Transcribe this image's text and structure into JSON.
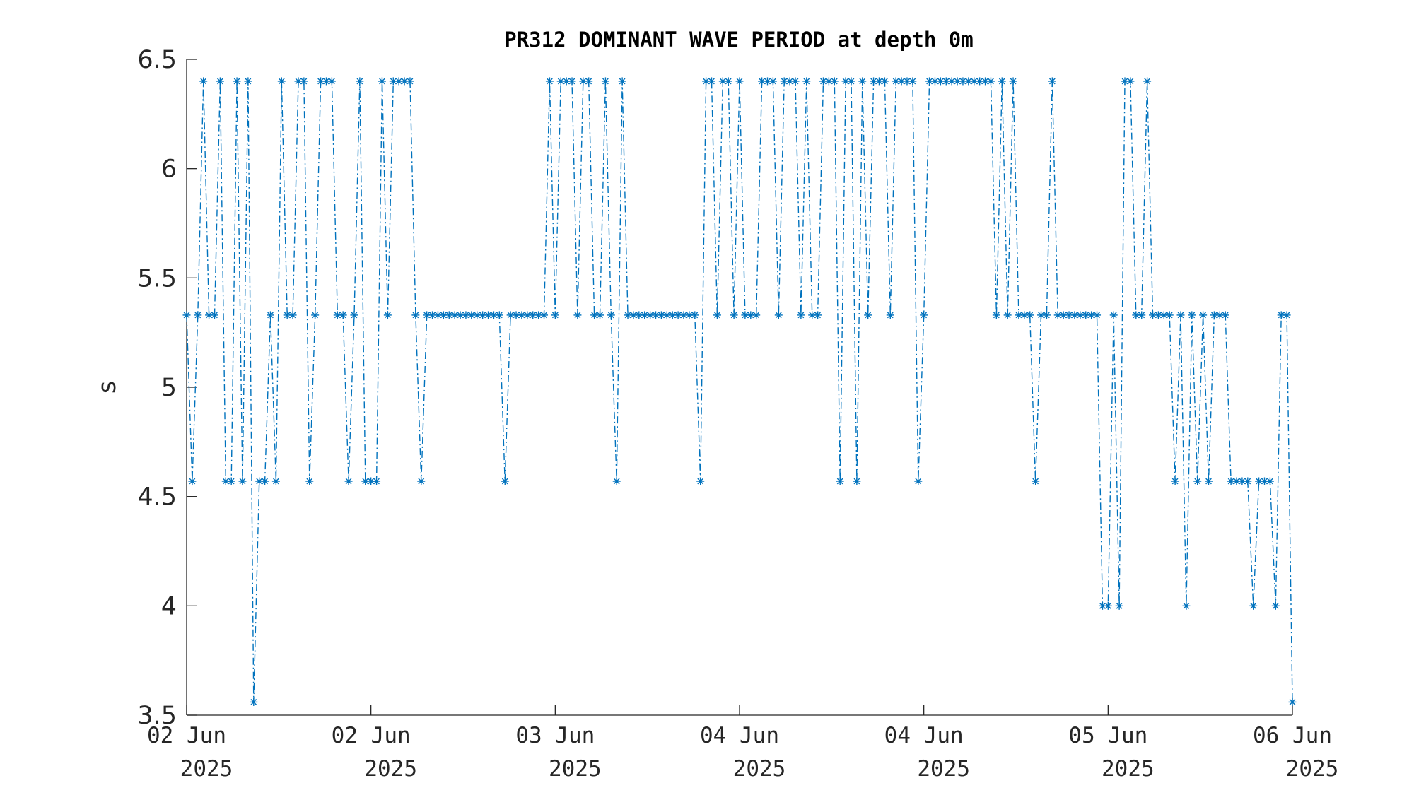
{
  "chart_data": {
    "type": "line",
    "title": "PR312 DOMINANT WAVE PERIOD at depth 0m",
    "xlabel": "",
    "ylabel": "s",
    "ylim": [
      3.5,
      6.5
    ],
    "yticks": [
      "3.5",
      "4",
      "4.5",
      "5",
      "5.5",
      "6",
      "6.5"
    ],
    "xticks": [
      {
        "day": "02 Jun",
        "year": "2025"
      },
      {
        "day": "02 Jun",
        "year": "2025"
      },
      {
        "day": "03 Jun",
        "year": "2025"
      },
      {
        "day": "04 Jun",
        "year": "2025"
      },
      {
        "day": "04 Jun",
        "year": "2025"
      },
      {
        "day": "05 Jun",
        "year": "2025"
      },
      {
        "day": "06 Jun",
        "year": "2025"
      }
    ],
    "grid": false,
    "color": "#0072BD",
    "line_style": "dash-dot",
    "marker": "asterisk",
    "series": [
      {
        "values": [
          5.33,
          4.57,
          5.33,
          6.4,
          5.33,
          5.33,
          6.4,
          4.57,
          4.57,
          6.4,
          4.57,
          6.4,
          3.56,
          4.57,
          4.57,
          5.33,
          4.57,
          6.4,
          5.33,
          5.33,
          6.4,
          6.4,
          4.57,
          5.33,
          6.4,
          6.4,
          6.4,
          5.33,
          5.33,
          4.57,
          5.33,
          6.4,
          4.57,
          4.57,
          4.57,
          6.4,
          5.33,
          6.4,
          6.4,
          6.4,
          6.4,
          5.33,
          4.57,
          5.33,
          5.33,
          5.33,
          5.33,
          5.33,
          5.33,
          5.33,
          5.33,
          5.33,
          5.33,
          5.33,
          5.33,
          5.33,
          5.33,
          4.57,
          5.33,
          5.33,
          5.33,
          5.33,
          5.33,
          5.33,
          5.33,
          6.4,
          5.33,
          6.4,
          6.4,
          6.4,
          5.33,
          6.4,
          6.4,
          5.33,
          5.33,
          6.4,
          5.33,
          4.57,
          6.4,
          5.33,
          5.33,
          5.33,
          5.33,
          5.33,
          5.33,
          5.33,
          5.33,
          5.33,
          5.33,
          5.33,
          5.33,
          5.33,
          4.57,
          6.4,
          6.4,
          5.33,
          6.4,
          6.4,
          5.33,
          6.4,
          5.33,
          5.33,
          5.33,
          6.4,
          6.4,
          6.4,
          5.33,
          6.4,
          6.4,
          6.4,
          5.33,
          6.4,
          5.33,
          5.33,
          6.4,
          6.4,
          6.4,
          4.57,
          6.4,
          6.4,
          4.57,
          6.4,
          5.33,
          6.4,
          6.4,
          6.4,
          5.33,
          6.4,
          6.4,
          6.4,
          6.4,
          4.57,
          5.33,
          6.4,
          6.4,
          6.4,
          6.4,
          6.4,
          6.4,
          6.4,
          6.4,
          6.4,
          6.4,
          6.4,
          6.4,
          5.33,
          6.4,
          5.33,
          6.4,
          5.33,
          5.33,
          5.33,
          4.57,
          5.33,
          5.33,
          6.4,
          5.33,
          5.33,
          5.33,
          5.33,
          5.33,
          5.33,
          5.33,
          5.33,
          4.0,
          4.0,
          5.33,
          4.0,
          6.4,
          6.4,
          5.33,
          5.33,
          6.4,
          5.33,
          5.33,
          5.33,
          5.33,
          4.57,
          5.33,
          4.0,
          5.33,
          4.57,
          5.33,
          4.57,
          5.33,
          5.33,
          5.33,
          4.57,
          4.57,
          4.57,
          4.57,
          4.0,
          4.57,
          4.57,
          4.57,
          4.0,
          5.33,
          5.33,
          3.56
        ]
      }
    ]
  }
}
